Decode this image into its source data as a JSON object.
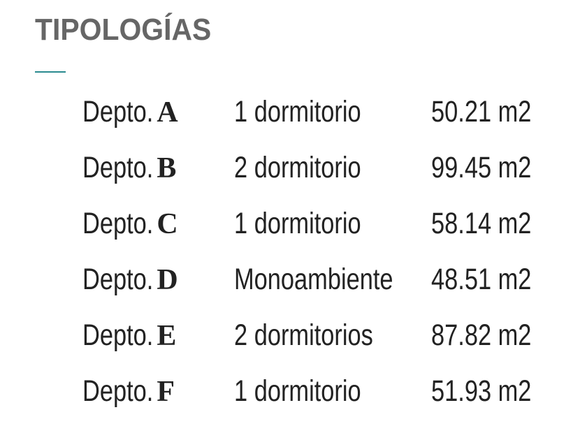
{
  "title": "TIPOLOGÍAS",
  "accent_color": "#2a8a8f",
  "units": [
    {
      "prefix": "Depto.",
      "letter": "A",
      "type": "1 dormitorio",
      "area": "50.21 m2"
    },
    {
      "prefix": "Depto.",
      "letter": "B",
      "type": "2 dormitorio",
      "area": "99.45 m2"
    },
    {
      "prefix": "Depto.",
      "letter": "C",
      "type": "1 dormitorio",
      "area": "58.14 m2"
    },
    {
      "prefix": "Depto.",
      "letter": "D",
      "type": "Monoambiente",
      "area": "48.51 m2"
    },
    {
      "prefix": "Depto.",
      "letter": "E",
      "type": "2 dormitorios",
      "area": "87.82 m2"
    },
    {
      "prefix": "Depto.",
      "letter": "F",
      "type": "1 dormitorio",
      "area": "51.93 m2"
    }
  ]
}
